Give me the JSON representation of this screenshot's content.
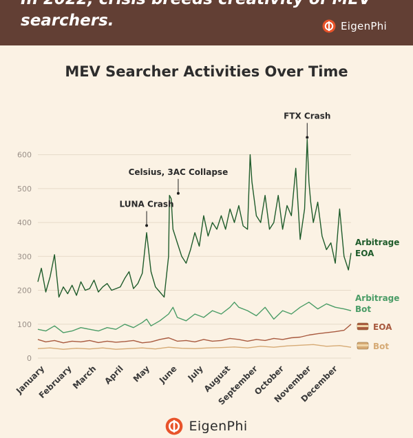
{
  "header": {
    "title": "In 2022, crisis breeds creativity of MEV searchers.",
    "brand": "EigenPhi"
  },
  "footer": {
    "brand": "EigenPhi"
  },
  "colors": {
    "banner": "#623f34",
    "background": "#fbf2e4",
    "arbitrage_eoa": "#1e5b2a",
    "arbitrage_bot": "#4a9c66",
    "sandwich_eoa": "#a8593e",
    "sandwich_bot": "#d6aa74"
  },
  "chart_data": {
    "type": "line",
    "title": "MEV Searcher Activities Over Time",
    "xlabel": "",
    "ylabel": "",
    "x_range": [
      1,
      358
    ],
    "ylim": [
      0,
      650
    ],
    "y_ticks": [
      0,
      100,
      200,
      300,
      400,
      500,
      600
    ],
    "x_tick_labels": [
      "January",
      "February",
      "March",
      "April",
      "May",
      "June",
      "July",
      "August",
      "September",
      "October",
      "November",
      "December"
    ],
    "x_tick_days": [
      1,
      32,
      60,
      91,
      121,
      152,
      182,
      213,
      244,
      274,
      305,
      335
    ],
    "grid": "horizontal",
    "series": [
      {
        "name": "Arbitrage EOA",
        "color": "#1e5b2a",
        "x": [
          1,
          5,
          10,
          15,
          20,
          25,
          30,
          35,
          40,
          45,
          50,
          55,
          60,
          65,
          70,
          75,
          80,
          85,
          90,
          95,
          100,
          105,
          110,
          115,
          120,
          125,
          130,
          135,
          140,
          145,
          150,
          151,
          153,
          155,
          160,
          165,
          170,
          175,
          180,
          185,
          190,
          195,
          200,
          205,
          210,
          215,
          220,
          225,
          230,
          235,
          240,
          243,
          245,
          250,
          255,
          260,
          265,
          270,
          275,
          280,
          285,
          290,
          295,
          300,
          305,
          308,
          310,
          312,
          315,
          320,
          325,
          330,
          335,
          340,
          345,
          350,
          355,
          358
        ],
        "values": [
          225,
          265,
          195,
          240,
          305,
          180,
          210,
          190,
          215,
          185,
          225,
          200,
          205,
          230,
          195,
          210,
          220,
          200,
          205,
          210,
          235,
          255,
          205,
          220,
          250,
          370,
          255,
          210,
          195,
          180,
          300,
          480,
          470,
          380,
          340,
          300,
          280,
          320,
          370,
          330,
          420,
          360,
          400,
          380,
          420,
          380,
          440,
          400,
          450,
          390,
          380,
          600,
          520,
          420,
          400,
          480,
          380,
          400,
          480,
          380,
          450,
          420,
          560,
          350,
          440,
          645,
          520,
          460,
          400,
          460,
          360,
          320,
          340,
          280,
          440,
          300,
          260,
          310
        ]
      },
      {
        "name": "Arbitrage Bot",
        "color": "#4a9c66",
        "x": [
          1,
          10,
          20,
          30,
          40,
          50,
          60,
          70,
          80,
          90,
          100,
          110,
          120,
          125,
          130,
          140,
          150,
          155,
          160,
          170,
          180,
          190,
          200,
          210,
          220,
          225,
          230,
          240,
          250,
          260,
          270,
          280,
          290,
          300,
          310,
          320,
          330,
          340,
          350,
          358
        ],
        "values": [
          85,
          80,
          95,
          75,
          80,
          90,
          85,
          80,
          90,
          85,
          100,
          90,
          105,
          115,
          95,
          110,
          130,
          150,
          120,
          110,
          130,
          120,
          140,
          130,
          150,
          165,
          150,
          140,
          125,
          150,
          115,
          140,
          130,
          150,
          165,
          145,
          160,
          150,
          145,
          140
        ]
      },
      {
        "name": "EOA",
        "color": "#a8593e",
        "x": [
          1,
          10,
          20,
          30,
          40,
          50,
          60,
          70,
          80,
          90,
          100,
          110,
          120,
          130,
          140,
          150,
          160,
          170,
          180,
          190,
          200,
          210,
          220,
          230,
          240,
          250,
          260,
          270,
          280,
          290,
          300,
          310,
          320,
          330,
          340,
          350,
          358
        ],
        "values": [
          55,
          48,
          52,
          45,
          50,
          48,
          52,
          46,
          50,
          47,
          49,
          52,
          45,
          48,
          55,
          60,
          50,
          52,
          48,
          55,
          50,
          52,
          58,
          55,
          50,
          55,
          52,
          58,
          55,
          60,
          62,
          68,
          72,
          75,
          78,
          82,
          100
        ]
      },
      {
        "name": "Bot",
        "color": "#d6aa74",
        "x": [
          1,
          15,
          30,
          45,
          60,
          75,
          90,
          105,
          120,
          135,
          150,
          165,
          180,
          195,
          210,
          225,
          240,
          255,
          270,
          285,
          300,
          315,
          330,
          345,
          358
        ],
        "values": [
          28,
          30,
          26,
          29,
          27,
          30,
          26,
          28,
          30,
          27,
          32,
          29,
          28,
          30,
          31,
          33,
          30,
          35,
          32,
          36,
          38,
          40,
          35,
          37,
          32
        ]
      }
    ],
    "annotations": [
      {
        "text": "LUNA Crash",
        "x": 125,
        "y": 395
      },
      {
        "text": "Celsius, 3AC Collapse",
        "x": 161,
        "y": 490
      },
      {
        "text": "FTX Crash",
        "x": 308,
        "y": 655
      }
    ],
    "series_labels": [
      {
        "lines": [
          "Arbitrage",
          "EOA"
        ],
        "color": "#1e5b2a",
        "icon": false
      },
      {
        "lines": [
          "Arbitrage",
          "Bot"
        ],
        "color": "#4a9c66",
        "icon": false
      },
      {
        "lines": [
          "EOA"
        ],
        "color": "#a8593e",
        "icon": true
      },
      {
        "lines": [
          "Bot"
        ],
        "color": "#d6aa74",
        "icon": true
      }
    ]
  }
}
